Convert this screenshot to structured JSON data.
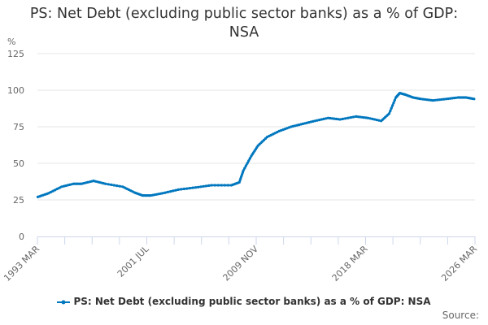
{
  "title": "PS: Net Debt (excluding public sector banks) as a % of GDP: NSA",
  "title_lines": [
    "PS: Net Debt (excluding public sector banks) as a % of GDP:",
    "NSA"
  ],
  "legend": {
    "label": "PS: Net Debt (excluding public sector banks) as a % of GDP: NSA",
    "color": "#0077BE"
  },
  "source_label": "Source:",
  "colors": {
    "series": "#0077BE",
    "grid": "#E6E6E6",
    "axis": "#CCD6EB",
    "text": "#333333",
    "tick_text": "#666666"
  },
  "chart_data": {
    "type": "line",
    "title": "PS: Net Debt (excluding public sector banks) as a % of GDP: NSA",
    "xlabel": "",
    "ylabel": "%",
    "ylim": [
      0,
      125
    ],
    "yticks": [
      0,
      25,
      50,
      75,
      100,
      125
    ],
    "xticks": [
      "1993 MAR",
      "2001 JUL",
      "2009 NOV",
      "2018 MAR",
      "2026 MAR"
    ],
    "xlim": [
      "1993 MAR",
      "2026 MAR"
    ],
    "grid": true,
    "legend_position": "bottom",
    "series": [
      {
        "name": "PS: Net Debt (excluding public sector banks) as a % of GDP: NSA",
        "x": [
          1993.2,
          1994.0,
          1995.0,
          1995.9,
          1996.5,
          1997.4,
          1998.3,
          1999.6,
          2000.5,
          2001.1,
          2001.7,
          2002.6,
          2003.8,
          2005.1,
          2006.3,
          2007.8,
          2008.4,
          2008.7,
          2009.3,
          2009.8,
          2010.5,
          2011.4,
          2012.3,
          2013.2,
          2014.1,
          2015.1,
          2016.0,
          2017.2,
          2018.1,
          2019.1,
          2019.7,
          2020.2,
          2020.5,
          2020.9,
          2021.5,
          2022.1,
          2023.0,
          2024.0,
          2024.9,
          2025.5,
          2026.1
        ],
        "values": [
          27,
          29.5,
          34,
          36,
          36,
          38,
          36,
          34,
          30,
          28,
          28,
          29.5,
          32,
          33.5,
          35,
          35,
          37,
          45,
          55,
          62,
          68,
          72,
          75,
          77,
          79,
          81,
          80,
          82,
          81,
          79,
          84,
          95,
          98,
          97,
          95,
          94,
          93,
          94,
          95,
          95,
          94
        ]
      }
    ]
  },
  "axis": {
    "y_unit": "%",
    "y_labels": [
      "0",
      "25",
      "50",
      "75",
      "100",
      "125"
    ],
    "x_labels": [
      "1993 MAR",
      "2001 JUL",
      "2009 NOV",
      "2018 MAR",
      "2026 MAR"
    ]
  }
}
